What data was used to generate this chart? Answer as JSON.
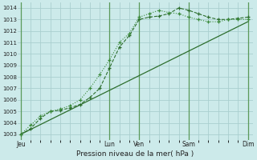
{
  "bg_color": "#cceaea",
  "grid_color": "#aacfcf",
  "line_color": "#2d6e2d",
  "line_color2": "#3a8a3a",
  "title": "Pression niveau de la mer( hPa )",
  "ylim": [
    1002.5,
    1014.5
  ],
  "yticks": [
    1003,
    1004,
    1005,
    1006,
    1007,
    1008,
    1009,
    1010,
    1011,
    1012,
    1013,
    1014
  ],
  "x_day_labels": [
    "Jeu",
    "Lun",
    "Ven",
    "Sam",
    "Dim"
  ],
  "x_day_positions": [
    0,
    9,
    12,
    17,
    23
  ],
  "xlim": [
    -0.3,
    23.5
  ],
  "line1_x": [
    0,
    1,
    2,
    3,
    4,
    5,
    6,
    7,
    8,
    9,
    10,
    11,
    12,
    13,
    14,
    15,
    16,
    17,
    18,
    19,
    20,
    21,
    22,
    23
  ],
  "line1_y": [
    1003.0,
    1003.5,
    1004.4,
    1005.0,
    1005.1,
    1005.3,
    1005.6,
    1006.2,
    1007.0,
    1008.8,
    1010.6,
    1011.6,
    1013.0,
    1013.2,
    1013.3,
    1013.5,
    1014.0,
    1013.8,
    1013.5,
    1013.2,
    1013.0,
    1013.0,
    1013.1,
    1013.2
  ],
  "line2_x": [
    0,
    1,
    2,
    3,
    4,
    5,
    6,
    7,
    8,
    9,
    10,
    11,
    12,
    13,
    14,
    15,
    16,
    17,
    18,
    19,
    20,
    21,
    22,
    23
  ],
  "line2_y": [
    1003.0,
    1003.8,
    1004.6,
    1005.0,
    1005.2,
    1005.5,
    1006.0,
    1007.0,
    1008.2,
    1009.5,
    1011.0,
    1011.8,
    1013.2,
    1013.5,
    1013.8,
    1013.6,
    1013.5,
    1013.2,
    1013.0,
    1012.8,
    1012.8,
    1013.0,
    1013.0,
    1013.0
  ],
  "line3_x": [
    0,
    23
  ],
  "line3_y": [
    1003.0,
    1012.8
  ]
}
